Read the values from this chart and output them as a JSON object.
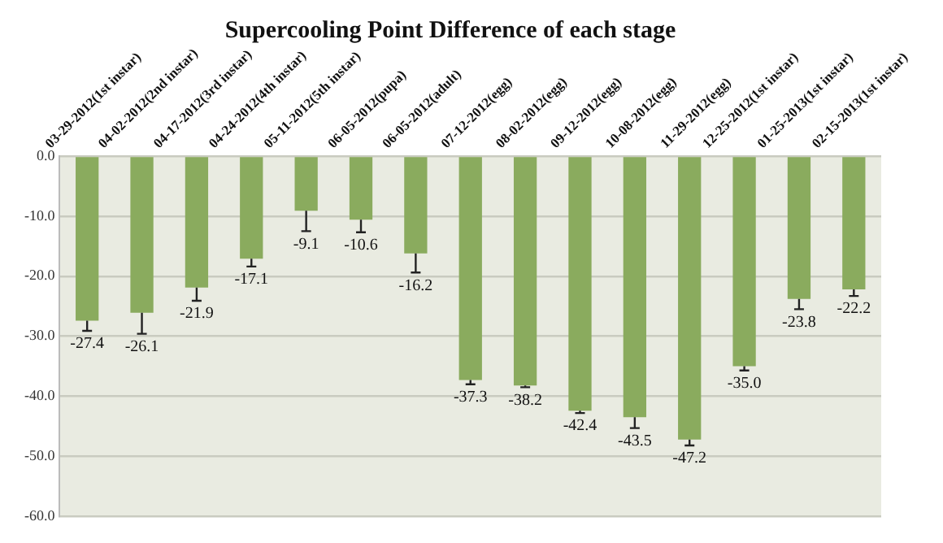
{
  "chart_data": {
    "type": "bar",
    "title": "Supercooling Point Difference of each stage",
    "categories": [
      "03-29-2012(1st instar)",
      "04-02-2012(2nd instar)",
      "04-17-2012(3rd instar)",
      "04-24-2012(4th instar)",
      "05-11-2012(5th instar)",
      "06-05-2012(pupa)",
      "06-05-2012(adult)",
      "07-12-2012(egg)",
      "08-02-2012(egg)",
      "09-12-2012(egg)",
      "10-08-2012(egg)",
      "11-29-2012(egg)",
      "12-25-2012(1st instar)",
      "01-25-2013(1st instar)",
      "02-15-2013(1st instar)"
    ],
    "values": [
      -27.4,
      -26.1,
      -21.9,
      -17.1,
      -9.1,
      -10.6,
      -16.2,
      -37.3,
      -38.2,
      -42.4,
      -43.5,
      -47.2,
      -35.0,
      -23.8,
      -22.2
    ],
    "value_labels": [
      "-27.4",
      "-26.1",
      "-21.9",
      "-17.1",
      "-9.1",
      "-10.6",
      "-16.2",
      "-37.3",
      "-38.2",
      "-42.4",
      "-43.5",
      "-47.2",
      "-35.0",
      "-23.8",
      "-22.2"
    ],
    "errors": [
      [
        -29.1,
        -27.4
      ],
      [
        -29.6,
        -26.1
      ],
      [
        -24.1,
        -21.9
      ],
      [
        -18.4,
        -17.1
      ],
      [
        -12.5,
        -9.1
      ],
      [
        -12.7,
        -10.6
      ],
      [
        -19.4,
        -16.2
      ],
      [
        -38.0,
        -37.3
      ],
      [
        -38.5,
        -38.2
      ],
      [
        -42.8,
        -42.4
      ],
      [
        -45.3,
        -43.5
      ],
      [
        -48.2,
        -47.2
      ],
      [
        -35.7,
        -35.0
      ],
      [
        -25.5,
        -23.8
      ],
      [
        -23.3,
        -22.2
      ]
    ],
    "color": "#8aab5e",
    "ylim": [
      -60,
      0
    ],
    "yticks": [
      {
        "value": 0,
        "label": "0.0"
      },
      {
        "value": -10,
        "label": "-10.0"
      },
      {
        "value": -20,
        "label": "-20.0"
      },
      {
        "value": -30,
        "label": "-30.0"
      },
      {
        "value": -40,
        "label": "-40.0"
      },
      {
        "value": -50,
        "label": "-50.0"
      },
      {
        "value": -60,
        "label": "-60.0"
      }
    ],
    "grid": "y"
  }
}
